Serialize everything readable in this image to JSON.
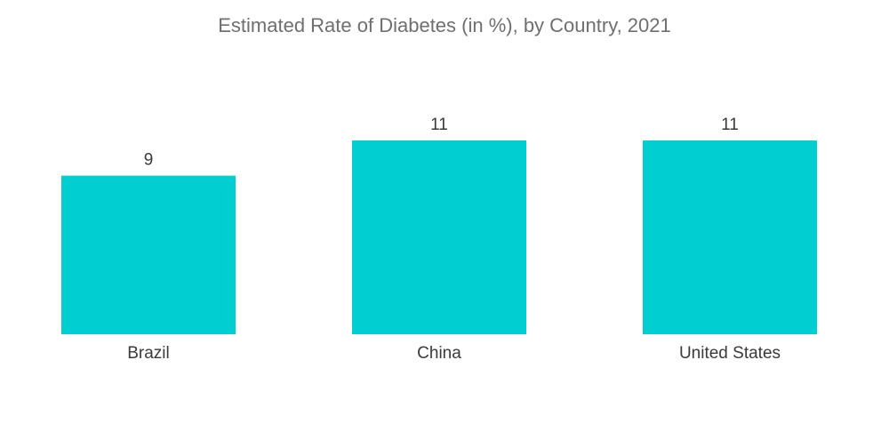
{
  "chart_data": {
    "type": "bar",
    "title": "Estimated Rate of Diabetes (in %), by Country, 2021",
    "xlabel": "",
    "ylabel": "",
    "categories": [
      "Brazil",
      "China",
      "United States"
    ],
    "values": [
      9,
      11,
      11
    ],
    "value_labels": [
      "9",
      "11",
      "11"
    ],
    "ylim": [
      0,
      11
    ],
    "grid": false,
    "legend": "none",
    "bar_color": "#00CED1"
  }
}
